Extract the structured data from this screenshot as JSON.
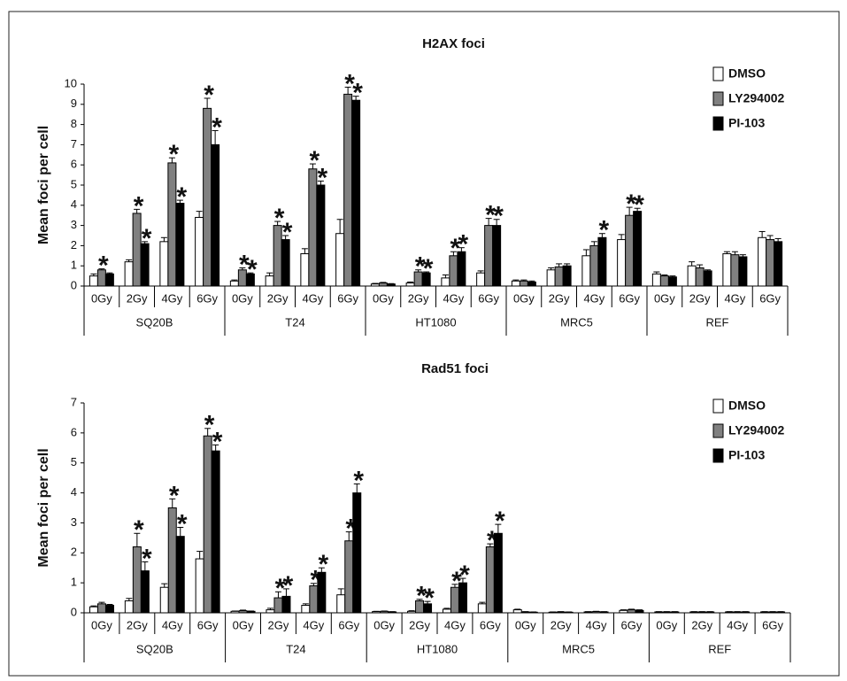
{
  "chart_data": [
    {
      "type": "bar",
      "title": "H2AX foci",
      "y_label": "Mean foci per cell",
      "categories": [
        "0Gy",
        "2Gy",
        "4Gy",
        "6Gy",
        "0Gy",
        "2Gy",
        "4Gy",
        "6Gy",
        "0Gy",
        "2Gy",
        "4Gy",
        "6Gy",
        "0Gy",
        "2Gy",
        "4Gy",
        "6Gy",
        "0Gy",
        "2Gy",
        "4Gy",
        "6Gy"
      ],
      "groups": [
        "SQ20B",
        "T24",
        "HT1080",
        "MRC5",
        "REF"
      ],
      "ylim": [
        0,
        10
      ],
      "yticks": [
        0,
        1,
        2,
        3,
        4,
        5,
        6,
        7,
        8,
        9,
        10
      ],
      "grid": false,
      "legend": "upper right",
      "series": [
        {
          "name": "DMSO",
          "color": "#ffffff",
          "values": [
            0.5,
            1.2,
            2.2,
            3.4,
            0.25,
            0.5,
            1.6,
            2.6,
            0.1,
            0.15,
            0.4,
            0.65,
            0.25,
            0.8,
            1.5,
            2.3,
            0.6,
            1.0,
            1.6,
            2.4
          ],
          "errors": [
            0.1,
            0.1,
            0.2,
            0.3,
            0.05,
            0.15,
            0.25,
            0.7,
            0.03,
            0.05,
            0.15,
            0.1,
            0.05,
            0.1,
            0.3,
            0.25,
            0.1,
            0.2,
            0.1,
            0.3
          ]
        },
        {
          "name": "LY294002",
          "color": "#808080",
          "values": [
            0.8,
            3.6,
            6.1,
            8.8,
            0.8,
            3.0,
            5.8,
            9.5,
            0.15,
            0.7,
            1.5,
            3.0,
            0.25,
            0.95,
            2.0,
            3.5,
            0.5,
            0.9,
            1.55,
            2.3
          ],
          "errors": [
            0.05,
            0.2,
            0.25,
            0.5,
            0.1,
            0.2,
            0.25,
            0.35,
            0.03,
            0.1,
            0.2,
            0.35,
            0.05,
            0.15,
            0.2,
            0.4,
            0.05,
            0.15,
            0.15,
            0.2
          ],
          "stars": [
            "*",
            "*",
            "*",
            "*",
            "*",
            "*",
            "*",
            "*",
            null,
            "*",
            "*",
            "*",
            null,
            null,
            null,
            "*",
            null,
            null,
            null,
            null
          ]
        },
        {
          "name": "PI-103",
          "color": "#000000",
          "values": [
            0.6,
            2.1,
            4.1,
            7.0,
            0.6,
            2.3,
            5.0,
            9.2,
            0.1,
            0.65,
            1.7,
            3.0,
            0.2,
            1.0,
            2.4,
            3.7,
            0.45,
            0.75,
            1.45,
            2.2
          ],
          "errors": [
            0.05,
            0.1,
            0.15,
            0.7,
            0.05,
            0.2,
            0.2,
            0.2,
            0.02,
            0.05,
            0.2,
            0.3,
            0.05,
            0.1,
            0.2,
            0.15,
            0.05,
            0.05,
            0.1,
            0.15
          ],
          "stars": [
            null,
            "*",
            "*",
            "*",
            "*",
            "*",
            "*",
            "*",
            null,
            "*",
            "*",
            "*",
            null,
            null,
            "*",
            "*",
            null,
            null,
            null,
            null
          ]
        }
      ]
    },
    {
      "type": "bar",
      "title": "Rad51 foci",
      "y_label": "Mean foci per cell",
      "categories": [
        "0Gy",
        "2Gy",
        "4Gy",
        "6Gy",
        "0Gy",
        "2Gy",
        "4Gy",
        "6Gy",
        "0Gy",
        "2Gy",
        "4Gy",
        "6Gy",
        "0Gy",
        "2Gy",
        "4Gy",
        "6Gy",
        "0Gy",
        "2Gy",
        "4Gy",
        "6Gy"
      ],
      "groups": [
        "SQ20B",
        "T24",
        "HT1080",
        "MRC5",
        "REF"
      ],
      "ylim": [
        0,
        7
      ],
      "yticks": [
        0,
        1,
        2,
        3,
        4,
        5,
        6,
        7
      ],
      "grid": false,
      "legend": "upper right",
      "series": [
        {
          "name": "DMSO",
          "color": "#ffffff",
          "values": [
            0.2,
            0.4,
            0.85,
            1.8,
            0.05,
            0.1,
            0.25,
            0.6,
            0.04,
            0.05,
            0.12,
            0.3,
            0.1,
            0.02,
            0.03,
            0.08,
            0.03,
            0.03,
            0.03,
            0.03
          ],
          "errors": [
            0.03,
            0.08,
            0.12,
            0.25,
            0.01,
            0.05,
            0.05,
            0.2,
            0.01,
            0.02,
            0.03,
            0.05,
            0.02,
            0.01,
            0.01,
            0.02,
            0.01,
            0.01,
            0.01,
            0.01
          ]
        },
        {
          "name": "LY294002",
          "color": "#808080",
          "values": [
            0.3,
            2.2,
            3.5,
            5.9,
            0.07,
            0.5,
            0.9,
            2.4,
            0.05,
            0.4,
            0.85,
            2.2,
            0.03,
            0.03,
            0.04,
            0.1,
            0.03,
            0.03,
            0.03,
            0.03
          ],
          "errors": [
            0.05,
            0.45,
            0.3,
            0.25,
            0.02,
            0.2,
            0.08,
            0.3,
            0.01,
            0.05,
            0.1,
            0.1,
            0.01,
            0.01,
            0.01,
            0.02,
            0.01,
            0.01,
            0.01,
            0.01
          ],
          "stars": [
            null,
            "*",
            "*",
            "*",
            null,
            "*",
            "*",
            "*",
            null,
            "*",
            "*",
            "*",
            null,
            null,
            null,
            null,
            null,
            null,
            null,
            null
          ]
        },
        {
          "name": "PI-103",
          "color": "#000000",
          "values": [
            0.25,
            1.4,
            2.55,
            5.4,
            0.05,
            0.55,
            1.35,
            4.0,
            0.03,
            0.3,
            1.0,
            2.65,
            0.02,
            0.02,
            0.03,
            0.08,
            0.03,
            0.03,
            0.03,
            0.03
          ],
          "errors": [
            0.03,
            0.3,
            0.3,
            0.2,
            0.01,
            0.25,
            0.15,
            0.3,
            0.01,
            0.08,
            0.15,
            0.3,
            0.01,
            0.01,
            0.01,
            0.02,
            0.01,
            0.01,
            0.01,
            0.01
          ],
          "stars": [
            null,
            "*",
            "*",
            "*",
            null,
            "*",
            "*",
            "*",
            null,
            "*",
            "*",
            "*",
            null,
            null,
            null,
            null,
            null,
            null,
            null,
            null
          ]
        }
      ]
    }
  ]
}
